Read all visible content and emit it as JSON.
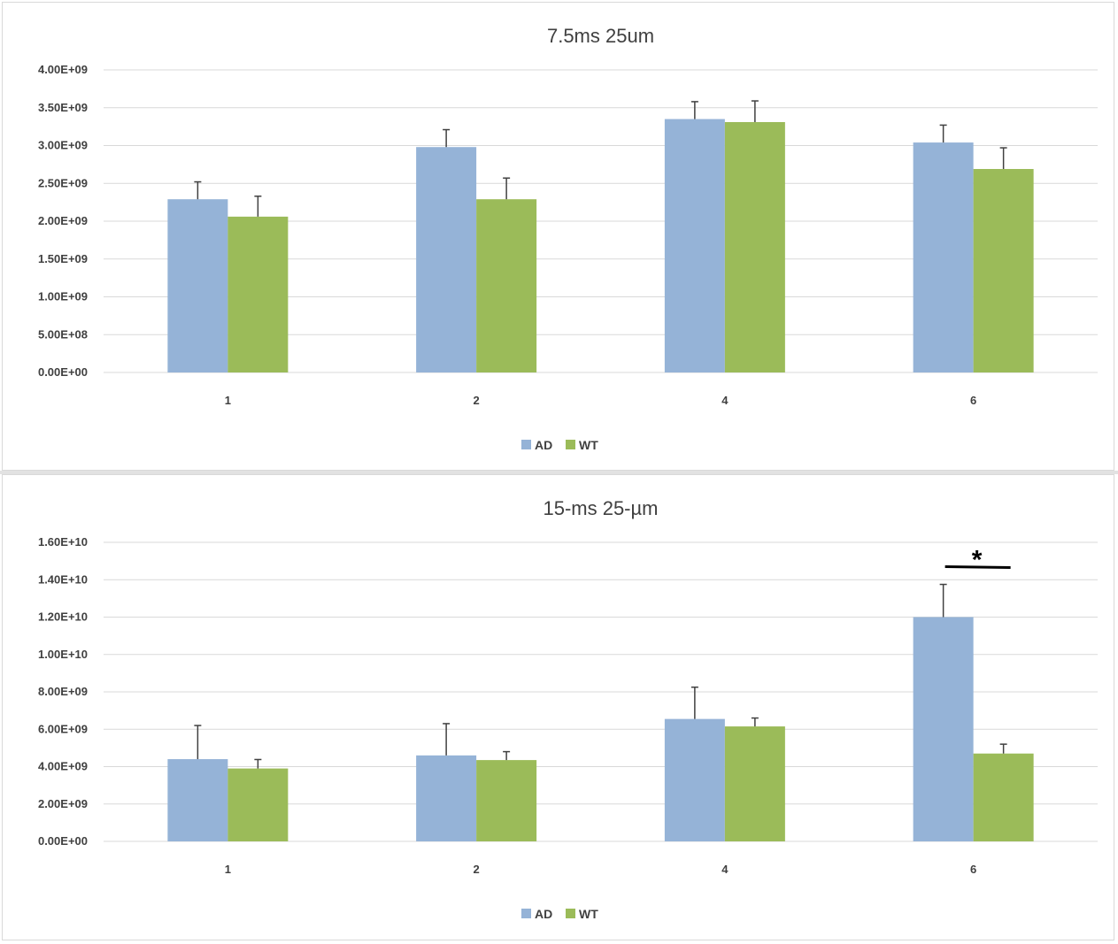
{
  "colors": {
    "AD": "#95b3d7",
    "WT": "#9bbb59",
    "grid": "#d9d9d9",
    "error": "#404040"
  },
  "chart_data": [
    {
      "type": "bar",
      "title": "7.5ms 25um",
      "categories": [
        "1",
        "2",
        "4",
        "6"
      ],
      "series": [
        {
          "name": "AD",
          "values": [
            2290000000.0,
            2980000000.0,
            3350000000.0,
            3040000000.0
          ],
          "errors": [
            230000000.0,
            230000000.0,
            230000000.0,
            230000000.0
          ]
        },
        {
          "name": "WT",
          "values": [
            2060000000.0,
            2290000000.0,
            3310000000.0,
            2690000000.0
          ],
          "errors": [
            270000000.0,
            280000000.0,
            280000000.0,
            280000000.0
          ]
        }
      ],
      "ylim": [
        0,
        4000000000.0
      ],
      "yticks": [
        "0.00E+00",
        "5.00E+08",
        "1.00E+09",
        "1.50E+09",
        "2.00E+09",
        "2.50E+09",
        "3.00E+09",
        "3.50E+09",
        "4.00E+09"
      ],
      "grid": true,
      "legend": "bottom",
      "annotations": []
    },
    {
      "type": "bar",
      "title": "15-ms 25-µm",
      "categories": [
        "1",
        "2",
        "4",
        "6"
      ],
      "series": [
        {
          "name": "AD",
          "values": [
            4400000000.0,
            4600000000.0,
            6550000000.0,
            12000000000.0
          ],
          "errors": [
            1800000000.0,
            1700000000.0,
            1700000000.0,
            1750000000.0
          ]
        },
        {
          "name": "WT",
          "values": [
            3900000000.0,
            4350000000.0,
            6150000000.0,
            4700000000.0
          ],
          "errors": [
            480000000.0,
            450000000.0,
            450000000.0,
            500000000.0
          ]
        }
      ],
      "ylim": [
        0,
        16000000000.0
      ],
      "yticks": [
        "0.00E+00",
        "2.00E+09",
        "4.00E+09",
        "6.00E+09",
        "8.00E+09",
        "1.00E+10",
        "1.20E+10",
        "1.40E+10",
        "1.60E+10"
      ],
      "grid": true,
      "legend": "bottom",
      "annotations": [
        {
          "category": "6",
          "text": "*",
          "level": 14700000000.0
        }
      ]
    }
  ]
}
